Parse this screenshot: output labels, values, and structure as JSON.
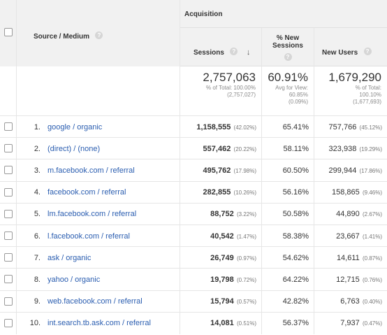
{
  "header": {
    "group_label": "Acquisition",
    "source_medium_label": "Source / Medium",
    "sessions_label": "Sessions",
    "new_sessions_label_line1": "% New",
    "new_sessions_label_line2": "Sessions",
    "new_users_label": "New Users",
    "help_glyph": "?",
    "sort_glyph": "↓"
  },
  "totals": {
    "sessions": {
      "value": "2,757,063",
      "line1": "% of Total: 100.00%",
      "line2": "(2,757,027)"
    },
    "new_sessions": {
      "value": "60.91%",
      "line1": "Avg for View:",
      "line2": "60.85%",
      "line3": "(0.09%)"
    },
    "new_users": {
      "value": "1,679,290",
      "line1": "% of Total:",
      "line2": "100.10%",
      "line3": "(1,677,693)"
    }
  },
  "rows": [
    {
      "rank": "1.",
      "source": "google / organic",
      "sessions": "1,158,555",
      "sessions_pct": "(42.02%)",
      "new_sessions": "65.41%",
      "new_users": "757,766",
      "new_users_pct": "(45.12%)"
    },
    {
      "rank": "2.",
      "source": "(direct) / (none)",
      "sessions": "557,462",
      "sessions_pct": "(20.22%)",
      "new_sessions": "58.11%",
      "new_users": "323,938",
      "new_users_pct": "(19.29%)"
    },
    {
      "rank": "3.",
      "source": "m.facebook.com / referral",
      "sessions": "495,762",
      "sessions_pct": "(17.98%)",
      "new_sessions": "60.50%",
      "new_users": "299,944",
      "new_users_pct": "(17.86%)"
    },
    {
      "rank": "4.",
      "source": "facebook.com / referral",
      "sessions": "282,855",
      "sessions_pct": "(10.26%)",
      "new_sessions": "56.16%",
      "new_users": "158,865",
      "new_users_pct": "(9.46%)"
    },
    {
      "rank": "5.",
      "source": "lm.facebook.com / referral",
      "sessions": "88,752",
      "sessions_pct": "(3.22%)",
      "new_sessions": "50.58%",
      "new_users": "44,890",
      "new_users_pct": "(2.67%)"
    },
    {
      "rank": "6.",
      "source": "l.facebook.com / referral",
      "sessions": "40,542",
      "sessions_pct": "(1.47%)",
      "new_sessions": "58.38%",
      "new_users": "23,667",
      "new_users_pct": "(1.41%)"
    },
    {
      "rank": "7.",
      "source": "ask / organic",
      "sessions": "26,749",
      "sessions_pct": "(0.97%)",
      "new_sessions": "54.62%",
      "new_users": "14,611",
      "new_users_pct": "(0.87%)"
    },
    {
      "rank": "8.",
      "source": "yahoo / organic",
      "sessions": "19,798",
      "sessions_pct": "(0.72%)",
      "new_sessions": "64.22%",
      "new_users": "12,715",
      "new_users_pct": "(0.76%)"
    },
    {
      "rank": "9.",
      "source": "web.facebook.com / referral",
      "sessions": "15,794",
      "sessions_pct": "(0.57%)",
      "new_sessions": "42.82%",
      "new_users": "6,763",
      "new_users_pct": "(0.40%)"
    },
    {
      "rank": "10.",
      "source": "int.search.tb.ask.com / referral",
      "sessions": "14,081",
      "sessions_pct": "(0.51%)",
      "new_sessions": "56.37%",
      "new_users": "7,937",
      "new_users_pct": "(0.47%)"
    }
  ]
}
